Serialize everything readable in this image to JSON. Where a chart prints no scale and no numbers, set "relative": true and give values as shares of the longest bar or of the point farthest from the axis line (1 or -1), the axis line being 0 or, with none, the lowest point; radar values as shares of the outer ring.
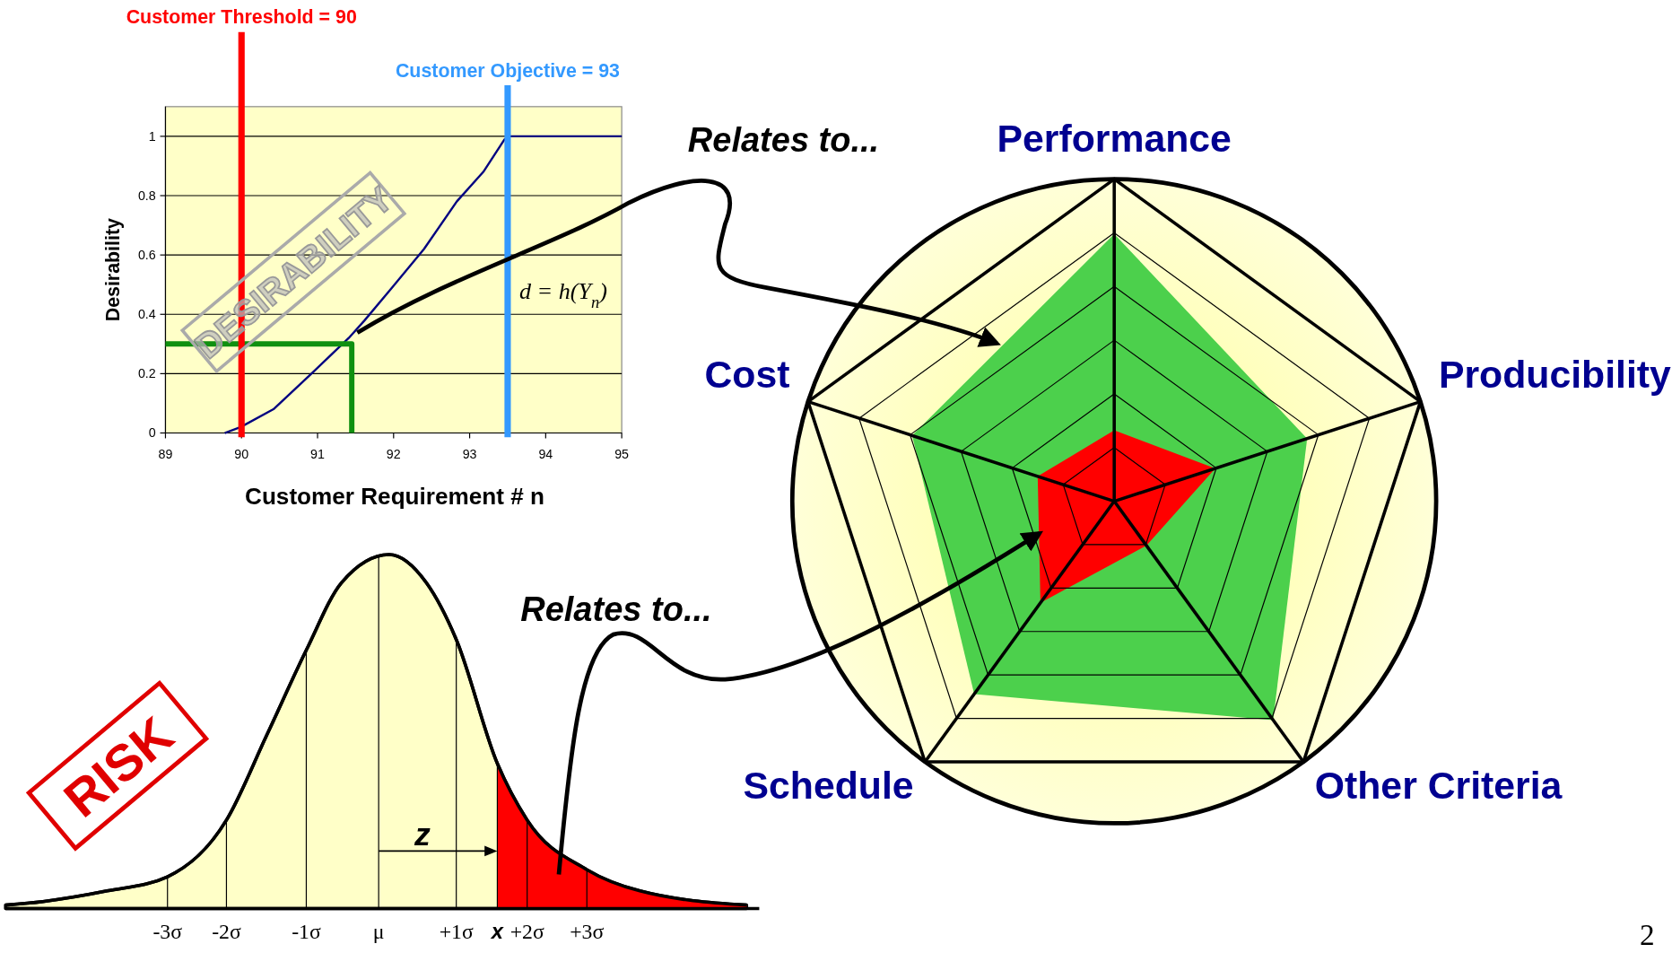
{
  "chart_data": [
    {
      "type": "line",
      "xlabel": "Customer Requirement # n",
      "ylabel": "Desirability",
      "x": [
        89.78,
        89.99,
        90.42,
        90.92,
        91.41,
        91.62,
        91.98,
        92.4,
        92.83,
        93.18,
        93.46,
        93.53,
        95
      ],
      "series": [
        {
          "color": "#000080",
          "values": [
            0,
            0.02,
            0.08,
            0.2,
            0.32,
            0.38,
            0.49,
            0.62,
            0.78,
            0.88,
            0.99,
            1,
            1
          ]
        },
        {
          "color": "#109010",
          "x": [
            89,
            91.45,
            91.45
          ],
          "values": [
            0.3,
            0.3,
            0
          ]
        }
      ],
      "xlim": [
        89,
        95
      ],
      "ylim": [
        0,
        1.1
      ],
      "xticks": [
        89,
        90,
        91,
        92,
        93,
        94,
        95
      ],
      "yticks": [
        0,
        0.2,
        0.4,
        0.6,
        0.8,
        1
      ],
      "grid": "y",
      "ref_lines": [
        {
          "axis": "x",
          "value": 90,
          "label": "Customer Threshold = 90",
          "color": "#ff0000"
        },
        {
          "axis": "x",
          "value": 93.5,
          "label": "Customer Objective = 93",
          "color": "#3399ff"
        }
      ],
      "annotations": [
        "d = h(Y$_{n}$)",
        "DESIRABILITY",
        "Relates to..."
      ]
    },
    {
      "type": "area",
      "relative": true,
      "x": [
        -5,
        -4.5,
        -3.64,
        -2.83,
        -2.04,
        -1.5,
        -0.97,
        -0.5,
        0.14,
        0.64,
        1.04,
        1.59,
        1.99,
        2.79,
        3.5,
        4.93
      ],
      "series": [
        {
          "color": "#ffffc8",
          "values": [
            0.01,
            0.02,
            0.05,
            0.09,
            0.25,
            0.49,
            0.73,
            0.92,
            1,
            0.92,
            0.76,
            0.41,
            0.25,
            0.11,
            0.05,
            0.01
          ]
        },
        {
          "color": "#ff0000",
          "x": [
            1.59,
            1.99,
            2.79,
            3.5,
            4.93
          ],
          "values": [
            0.41,
            0.25,
            0.11,
            0.05,
            0.01
          ]
        }
      ],
      "xlim": [
        -5,
        5.1
      ],
      "xticks": [
        {
          "value": -2.83,
          "label": "-3σ"
        },
        {
          "value": -2.04,
          "label": "-2σ"
        },
        {
          "value": -0.97,
          "label": "-1σ"
        },
        {
          "value": 0,
          "label": "μ"
        },
        {
          "value": 1.04,
          "label": "+1σ"
        },
        {
          "value": 1.59,
          "label": "x"
        },
        {
          "value": 1.99,
          "label": "+2σ"
        },
        {
          "value": 2.79,
          "label": "+3σ"
        }
      ],
      "grid": "x",
      "annotations": [
        "z",
        "RISK",
        "Relates to..."
      ]
    },
    {
      "type": "radar",
      "relative": true,
      "categories": [
        "Performance",
        "Producibility",
        "Other Criteria",
        "Schedule",
        "Cost"
      ],
      "series": [
        {
          "color": "#4cd04c",
          "values": [
            0.83,
            0.63,
            0.84,
            0.74,
            0.66
          ]
        },
        {
          "color": "#ff0000",
          "values": [
            0.22,
            0.33,
            0.17,
            0.39,
            0.25
          ]
        }
      ],
      "grid": true,
      "annotations": [
        "2"
      ]
    }
  ]
}
